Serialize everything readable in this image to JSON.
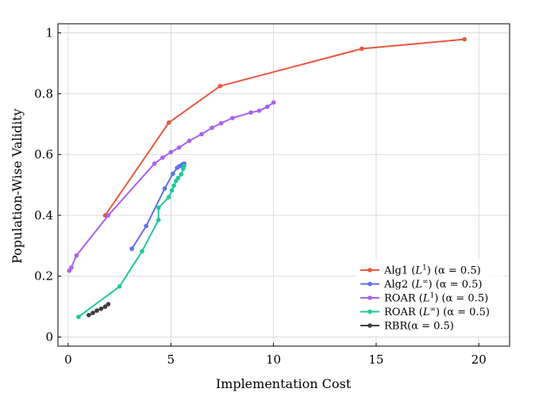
{
  "chart_data": {
    "type": "line",
    "title": "",
    "xlabel": "Implementation Cost",
    "ylabel": "Population-Wise Validity",
    "xlim": [
      -0.5,
      21.5
    ],
    "ylim": [
      -0.03,
      1.03
    ],
    "xticks": [
      0,
      5,
      10,
      15,
      20
    ],
    "xtick_labels": [
      "0",
      "5",
      "10",
      "15",
      "20"
    ],
    "yticks": [
      0,
      0.2,
      0.4,
      0.6,
      0.8,
      1
    ],
    "ytick_labels": [
      "0",
      "0.2",
      "0.4",
      "0.6",
      "0.8",
      "1"
    ],
    "grid": true,
    "legend_position": "bottom-right",
    "series": [
      {
        "name": "Alg1 (L¹) (α = 0.5)",
        "label_main": "Alg1 (",
        "label_var": "L",
        "label_sup": "1",
        "label_rest": ") (α = 0.5)",
        "color": "#e8573e",
        "x": [
          1.8,
          4.9,
          7.4,
          14.3,
          19.3
        ],
        "y": [
          0.4,
          0.705,
          0.825,
          0.948,
          0.979
        ]
      },
      {
        "name": "Alg2 (L∞) (α = 0.5)",
        "label_main": "Alg2 (",
        "label_var": "L",
        "label_sup": "∞",
        "label_rest": ") (α = 0.5)",
        "color": "#6070e8",
        "x": [
          3.1,
          3.8,
          4.7,
          5.1,
          5.3,
          5.4,
          5.5,
          5.55,
          5.6,
          5.65
        ],
        "y": [
          0.29,
          0.365,
          0.488,
          0.537,
          0.556,
          0.561,
          0.564,
          0.567,
          0.569,
          0.57
        ]
      },
      {
        "name": "ROAR (L¹) (α = 0.5)",
        "label_main": "ROAR (",
        "label_var": "L",
        "label_sup": "1",
        "label_rest": ") (α = 0.5)",
        "color": "#a861f0",
        "x": [
          0.05,
          0.15,
          0.4,
          1.95,
          4.2,
          4.6,
          5.0,
          5.4,
          5.9,
          6.5,
          7.0,
          7.45,
          8.0,
          8.9,
          9.3,
          9.7,
          10.0
        ],
        "y": [
          0.218,
          0.228,
          0.268,
          0.4,
          0.57,
          0.59,
          0.608,
          0.623,
          0.645,
          0.667,
          0.688,
          0.703,
          0.72,
          0.738,
          0.744,
          0.757,
          0.771
        ]
      },
      {
        "name": "ROAR (L∞) (α = 0.5)",
        "label_main": "ROAR (",
        "label_var": "L",
        "label_sup": "∞",
        "label_rest": ") (α = 0.5)",
        "color": "#1ec99a",
        "x": [
          0.5,
          2.5,
          3.6,
          4.4,
          4.4,
          4.9,
          5.05,
          5.15,
          5.25,
          5.35,
          5.5,
          5.6,
          5.65
        ],
        "y": [
          0.066,
          0.166,
          0.282,
          0.385,
          0.425,
          0.46,
          0.482,
          0.498,
          0.513,
          0.523,
          0.535,
          0.553,
          0.563
        ]
      },
      {
        "name": "RBR(α = 0.5)",
        "label_main": "RBR(α = 0.5)",
        "label_var": "",
        "label_sup": "",
        "label_rest": "",
        "color": "#3d3d3d",
        "x": [
          1.0,
          1.2,
          1.4,
          1.6,
          1.8,
          1.95
        ],
        "y": [
          0.072,
          0.079,
          0.087,
          0.093,
          0.1,
          0.108
        ]
      }
    ]
  }
}
